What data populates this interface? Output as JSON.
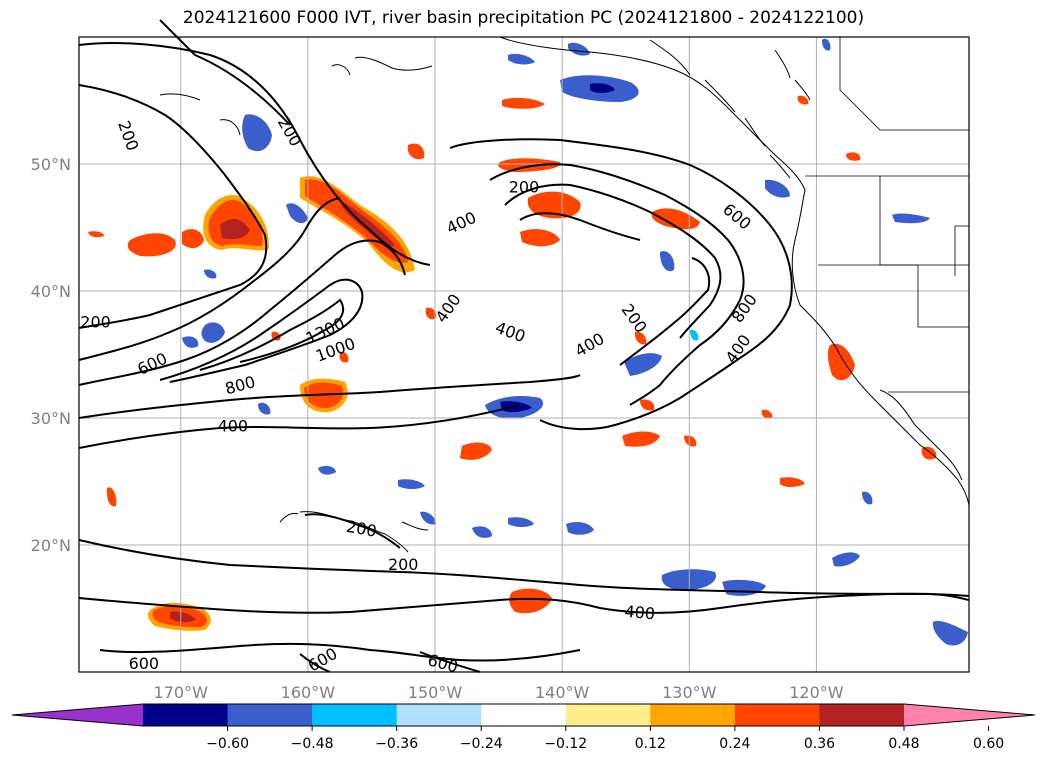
{
  "title": "2024121600 F000 IVT, river basin precipitation PC (2024121800 - 2024122100)",
  "lat_labels": [
    {
      "lat": 50,
      "text": "50°N"
    },
    {
      "lat": 40,
      "text": "40°N"
    },
    {
      "lat": 30,
      "text": "30°N"
    },
    {
      "lat": 20,
      "text": "20°N"
    }
  ],
  "lon_labels": [
    {
      "lon": -170,
      "text": "170°W"
    },
    {
      "lon": -160,
      "text": "160°W"
    },
    {
      "lon": -150,
      "text": "150°W"
    },
    {
      "lon": -140,
      "text": "140°W"
    },
    {
      "lon": -130,
      "text": "130°W"
    },
    {
      "lon": -120,
      "text": "120°W"
    }
  ],
  "map_extent": {
    "lon_min": -178,
    "lon_max": -108,
    "lat_min": 10,
    "lat_max": 60
  },
  "contour_labels": [
    {
      "text": "200",
      "lon": -174.2,
      "lat": 52.2,
      "rot": 70
    },
    {
      "text": "200",
      "lon": -161.5,
      "lat": 52.5,
      "rot": 60
    },
    {
      "text": "200",
      "lon": -176.7,
      "lat": 37.5,
      "rot": 0
    },
    {
      "text": "600",
      "lon": -172.2,
      "lat": 34.2,
      "rot": -25
    },
    {
      "text": "800",
      "lon": -165.3,
      "lat": 32.5,
      "rot": -15
    },
    {
      "text": "1300",
      "lon": -158.6,
      "lat": 36.8,
      "rot": -25
    },
    {
      "text": "1000",
      "lon": -157.8,
      "lat": 35.3,
      "rot": -20
    },
    {
      "text": "400",
      "lon": -165.9,
      "lat": 29.3,
      "rot": 0
    },
    {
      "text": "400",
      "lon": -147.9,
      "lat": 45.3,
      "rot": -25
    },
    {
      "text": "200",
      "lon": -143.0,
      "lat": 48.1,
      "rot": 0
    },
    {
      "text": "400",
      "lon": -148.9,
      "lat": 38.6,
      "rot": -55
    },
    {
      "text": "400",
      "lon": -144.1,
      "lat": 36.7,
      "rot": 20
    },
    {
      "text": "400",
      "lon": -137.8,
      "lat": 35.7,
      "rot": -30
    },
    {
      "text": "200",
      "lon": -134.4,
      "lat": 37.8,
      "rot": 55
    },
    {
      "text": "600",
      "lon": -126.3,
      "lat": 45.8,
      "rot": 40
    },
    {
      "text": "800",
      "lon": -125.6,
      "lat": 38.6,
      "rot": -55
    },
    {
      "text": "400",
      "lon": -126.1,
      "lat": 35.4,
      "rot": -55
    },
    {
      "text": "200",
      "lon": -155.8,
      "lat": 21.2,
      "rot": 10
    },
    {
      "text": "200",
      "lon": -152.5,
      "lat": 18.4,
      "rot": 0
    },
    {
      "text": "400",
      "lon": -133.9,
      "lat": 14.6,
      "rot": 5
    },
    {
      "text": "600",
      "lon": -172.9,
      "lat": 10.6,
      "rot": 0
    },
    {
      "text": "600",
      "lon": -158.8,
      "lat": 10.9,
      "rot": -30
    },
    {
      "text": "600",
      "lon": -149.4,
      "lat": 10.6,
      "rot": 15
    }
  ],
  "colorbar": {
    "colors": [
      "#9932cc",
      "#00008b",
      "#3a5fcd",
      "#00bfff",
      "#b0e2ff",
      "#ffffff",
      "#ffec8b",
      "#ffa500",
      "#ff4500",
      "#b22222",
      "#ff82ab"
    ],
    "ticks": [
      "−0.60",
      "−0.48",
      "−0.36",
      "−0.24",
      "−0.12",
      "0.12",
      "0.24",
      "0.36",
      "0.48",
      "0.60"
    ]
  },
  "colors": {
    "frame": "#000000",
    "grid": "#b0b0b0",
    "axis_label": "#808080",
    "contour": "#000000"
  }
}
